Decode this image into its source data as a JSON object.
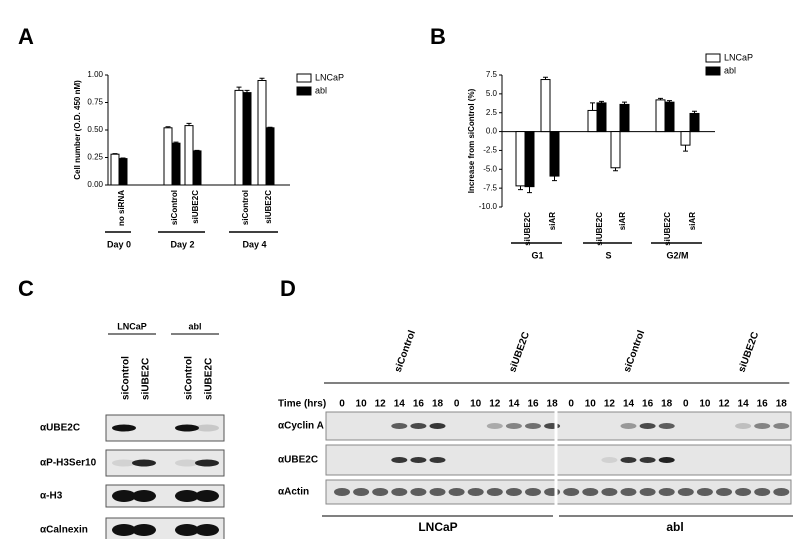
{
  "chart_data": [
    {
      "panel": "A",
      "type": "bar",
      "y_label": "Cell number (O.D. 450 nM)",
      "groups": [
        {
          "name": "Day 0",
          "categories": [
            "no siRNA"
          ]
        },
        {
          "name": "Day 2",
          "categories": [
            "siControl",
            "siUBE2C"
          ]
        },
        {
          "name": "Day 4",
          "categories": [
            "siControl",
            "siUBE2C"
          ]
        }
      ],
      "series": [
        {
          "name": "LNCaP",
          "color": "#ffffff",
          "values": [
            0.28,
            0.52,
            0.54,
            0.86,
            0.95
          ],
          "errors": [
            0.005,
            0.01,
            0.02,
            0.03,
            0.02
          ]
        },
        {
          "name": "abl",
          "color": "#000000",
          "values": [
            0.24,
            0.38,
            0.31,
            0.84,
            0.52
          ],
          "errors": [
            0.005,
            0.01,
            0.005,
            0.02,
            0.005
          ]
        }
      ],
      "ylim": [
        0,
        1.0
      ],
      "yticks": [
        {
          "value": 0,
          "label": "0.00"
        },
        {
          "value": 0.25,
          "label": "0.25"
        },
        {
          "value": 0.5,
          "label": "0.50"
        },
        {
          "value": 0.75,
          "label": "0.75"
        },
        {
          "value": 1.0,
          "label": "1.00"
        }
      ],
      "legend": "upper right"
    },
    {
      "panel": "B",
      "type": "bar",
      "y_label": "Increase from siControl (%)",
      "groups": [
        {
          "name": "G1",
          "categories": [
            "siUBE2C",
            "siAR"
          ]
        },
        {
          "name": "S",
          "categories": [
            "siUBE2C",
            "siAR"
          ]
        },
        {
          "name": "G2/M",
          "categories": [
            "siUBE2C",
            "siAR"
          ]
        }
      ],
      "series": [
        {
          "name": "LNCaP",
          "color": "#ffffff",
          "values": [
            -7.2,
            6.9,
            2.8,
            -4.8,
            4.2,
            -1.8
          ],
          "errors": [
            0.5,
            0.3,
            1.0,
            0.4,
            0.2,
            0.8
          ]
        },
        {
          "name": "abl",
          "color": "#000000",
          "values": [
            -7.3,
            -5.9,
            3.8,
            3.6,
            3.9,
            2.4
          ],
          "errors": [
            0.8,
            0.6,
            0.2,
            0.3,
            0.2,
            0.3
          ]
        }
      ],
      "ylim": [
        -10.0,
        7.5
      ],
      "yticks": [
        {
          "value": -10,
          "label": "-10.0"
        },
        {
          "value": -7.5,
          "label": "-7.5"
        },
        {
          "value": -5,
          "label": "-5.0"
        },
        {
          "value": -2.5,
          "label": "-2.5"
        },
        {
          "value": 0,
          "label": "0.0"
        },
        {
          "value": 2.5,
          "label": "2.5"
        },
        {
          "value": 5,
          "label": "5.0"
        },
        {
          "value": 7.5,
          "label": "7.5"
        }
      ],
      "legend": "upper right"
    }
  ],
  "panel_c": {
    "panel": "C",
    "cell_lines": [
      "LNCaP",
      "abl"
    ],
    "lanes": [
      "siControl",
      "siUBE2C",
      "siControl",
      "siUBE2C"
    ],
    "rows": [
      "αUBE2C",
      "αP-H3Ser10",
      "α-H3",
      "αCalnexin"
    ]
  },
  "panel_d": {
    "panel": "D",
    "conditions": [
      "siControl",
      "siUBE2C",
      "siControl",
      "siUBE2C"
    ],
    "time_label": "Time (hrs)",
    "times": [
      0,
      10,
      12,
      14,
      16,
      18
    ],
    "rows": [
      "αCyclin A",
      "αUBE2C",
      "αActin"
    ],
    "cell_lines": [
      "LNCaP",
      "abl"
    ]
  }
}
